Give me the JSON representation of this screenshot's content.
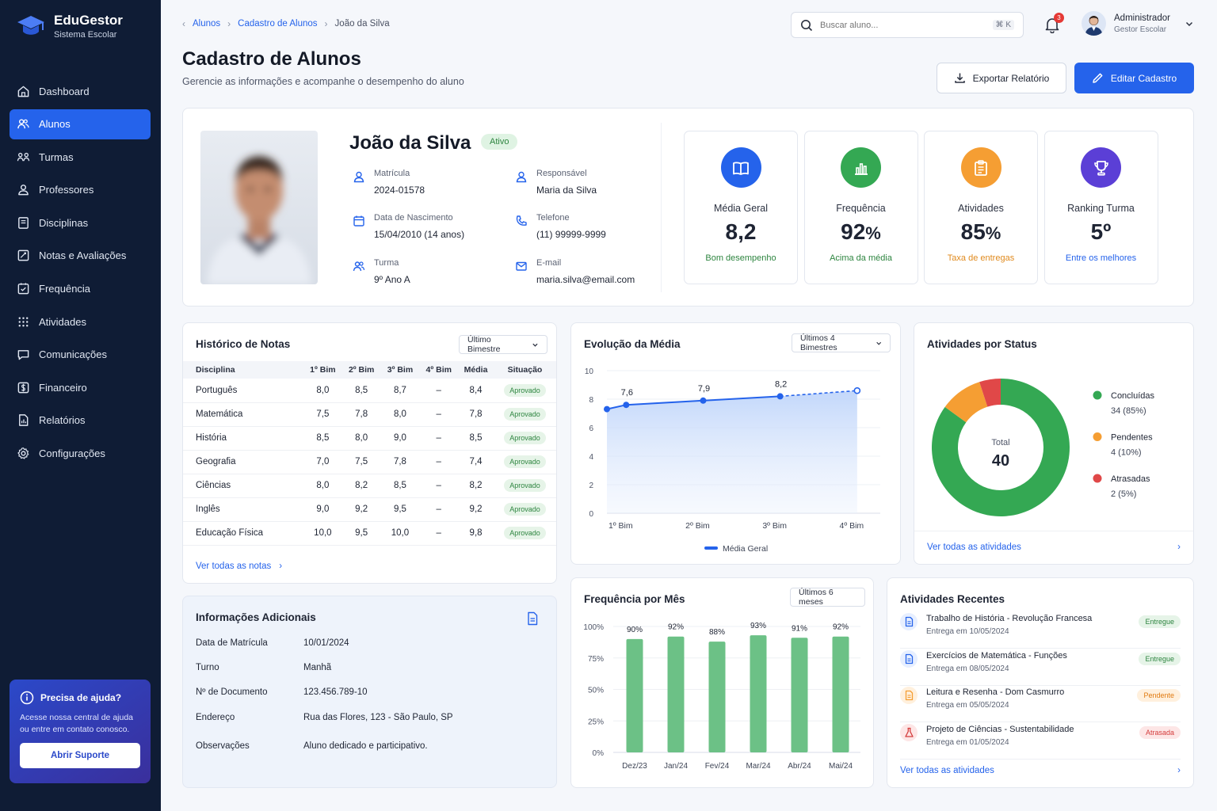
{
  "app": {
    "name": "EduGestor",
    "subtitle": "Sistema Escolar"
  },
  "sidebar": {
    "items": [
      {
        "label": "Dashboard",
        "icon": "home-icon"
      },
      {
        "label": "Alunos",
        "icon": "students-icon",
        "active": true
      },
      {
        "label": "Turmas",
        "icon": "classes-icon"
      },
      {
        "label": "Professores",
        "icon": "user-icon"
      },
      {
        "label": "Disciplinas",
        "icon": "book-icon"
      },
      {
        "label": "Notas e Avaliações",
        "icon": "grades-icon"
      },
      {
        "label": "Frequência",
        "icon": "attendance-icon"
      },
      {
        "label": "Atividades",
        "icon": "activities-icon"
      },
      {
        "label": "Comunicações",
        "icon": "chat-icon"
      },
      {
        "label": "Financeiro",
        "icon": "finance-icon"
      },
      {
        "label": "Relatórios",
        "icon": "reports-icon"
      },
      {
        "label": "Configurações",
        "icon": "gear-icon"
      }
    ],
    "help": {
      "title": "Precisa de ajuda?",
      "text": "Acesse nossa central de ajuda ou entre em contato conosco.",
      "button": "Abrir Suporte"
    }
  },
  "breadcrumb": {
    "items": [
      "Alunos",
      "Cadastro de Alunos"
    ],
    "current": "João da Silva"
  },
  "header": {
    "title": "Cadastro de Alunos",
    "subtitle": "Gerencie as informações e acompanhe o desempenho do aluno",
    "search_placeholder": "Buscar aluno...",
    "search_shortcut": "⌘ K",
    "notifications": "3",
    "user_name": "Administrador",
    "user_role": "Gestor Escolar",
    "export_label": "Exportar Relatório",
    "edit_label": "Editar Cadastro"
  },
  "student": {
    "name": "João da Silva",
    "status": "Ativo",
    "fields": {
      "matricula": {
        "label": "Matrícula",
        "value": "2024-01578"
      },
      "responsavel": {
        "label": "Responsável",
        "value": "Maria da Silva"
      },
      "nascimento": {
        "label": "Data de Nascimento",
        "value": "15/04/2010 (14 anos)"
      },
      "telefone": {
        "label": "Telefone",
        "value": "(11) 99999-9999"
      },
      "turma": {
        "label": "Turma",
        "value": "9º Ano A"
      },
      "email": {
        "label": "E-mail",
        "value": "maria.silva@email.com"
      }
    }
  },
  "stats": [
    {
      "label": "Média Geral",
      "value": "8,2",
      "unit": "",
      "note": "Bom desempenho",
      "color": "#2563eb",
      "note_color": "#2e8540",
      "icon": "book-open-icon"
    },
    {
      "label": "Frequência",
      "value": "92",
      "unit": "%",
      "note": "Acima da média",
      "color": "#34a853",
      "note_color": "#2e8540",
      "icon": "bar-chart-icon"
    },
    {
      "label": "Atividades",
      "value": "85",
      "unit": "%",
      "note": "Taxa de entregas",
      "color": "#f59e33",
      "note_color": "#e08a1e",
      "icon": "clipboard-icon"
    },
    {
      "label": "Ranking Turma",
      "value": "5º",
      "unit": "",
      "note": "Entre os melhores",
      "color": "#5b3fd6",
      "note_color": "#2563eb",
      "icon": "trophy-icon"
    }
  ],
  "grades": {
    "title": "Histórico de Notas",
    "filter": "Último Bimestre",
    "columns": [
      "Disciplina",
      "1º Bim",
      "2º Bim",
      "3º Bim",
      "4º Bim",
      "Média",
      "Situação"
    ],
    "rows": [
      [
        "Português",
        "8,0",
        "8,5",
        "8,7",
        "–",
        "8,4",
        "Aprovado"
      ],
      [
        "Matemática",
        "7,5",
        "7,8",
        "8,0",
        "–",
        "7,8",
        "Aprovado"
      ],
      [
        "História",
        "8,5",
        "8,0",
        "9,0",
        "–",
        "8,5",
        "Aprovado"
      ],
      [
        "Geografia",
        "7,0",
        "7,5",
        "7,8",
        "–",
        "7,4",
        "Aprovado"
      ],
      [
        "Ciências",
        "8,0",
        "8,2",
        "8,5",
        "–",
        "8,2",
        "Aprovado"
      ],
      [
        "Inglês",
        "9,0",
        "9,2",
        "9,5",
        "–",
        "9,2",
        "Aprovado"
      ],
      [
        "Educação Física",
        "10,0",
        "9,5",
        "10,0",
        "–",
        "9,8",
        "Aprovado"
      ]
    ],
    "link": "Ver todas as notas"
  },
  "extra": {
    "title": "Informações Adicionais",
    "rows": [
      {
        "k": "Data de Matrícula",
        "v": "10/01/2024"
      },
      {
        "k": "Turno",
        "v": "Manhã"
      },
      {
        "k": "Nº de Documento",
        "v": "123.456.789-10"
      },
      {
        "k": "Endereço",
        "v": "Rua das Flores, 123 - São Paulo, SP"
      },
      {
        "k": "Observações",
        "v": "Aluno dedicado e participativo."
      }
    ]
  },
  "evolution": {
    "title": "Evolução da Média",
    "filter": "Últimos 4 Bimestres",
    "chart_data": {
      "type": "line",
      "categories": [
        "1º Bim",
        "2º Bim",
        "3º Bim",
        "4º Bim"
      ],
      "series": [
        {
          "name": "Média Geral",
          "x": [
            0.75,
            1,
            2,
            3,
            4
          ],
          "values": [
            7.3,
            7.6,
            7.9,
            8.2,
            8.6
          ],
          "labels": [
            "",
            "7,6",
            "7,9",
            "8,2",
            ""
          ]
        }
      ],
      "ylim": [
        0,
        10
      ],
      "yticks": [
        0,
        2,
        4,
        6,
        8,
        10
      ],
      "projected_from_index": 3,
      "color": "#2563eb"
    }
  },
  "status": {
    "title": "Atividades por Status",
    "total_label": "Total",
    "total": "40",
    "chart_data": {
      "type": "pie",
      "labels": [
        "Concluídas",
        "Pendentes",
        "Atrasadas"
      ],
      "values": [
        34,
        4,
        2
      ],
      "display": [
        "34 (85%)",
        "4 (10%)",
        "2 (5%)"
      ],
      "colors": [
        "#34a853",
        "#f59e33",
        "#e04848"
      ]
    },
    "link": "Ver todas as atividades"
  },
  "attendance": {
    "title": "Frequência por Mês",
    "filter": "Últimos 6 meses",
    "chart_data": {
      "type": "bar",
      "categories": [
        "Dez/23",
        "Jan/24",
        "Fev/24",
        "Mar/24",
        "Abr/24",
        "Mai/24"
      ],
      "values": [
        90,
        92,
        88,
        93,
        91,
        92
      ],
      "labels": [
        "90%",
        "92%",
        "88%",
        "93%",
        "91%",
        "92%"
      ],
      "ylim": [
        0,
        100
      ],
      "yticks": [
        "0%",
        "25%",
        "50%",
        "75%",
        "100%"
      ],
      "color": "#6cc186"
    }
  },
  "recent": {
    "title": "Atividades Recentes",
    "items": [
      {
        "title": "Trabalho de História - Revolução Francesa",
        "date": "Entrega em 10/05/2024",
        "status": "Entregue",
        "kind": "ok"
      },
      {
        "title": "Exercícios de Matemática - Funções",
        "date": "Entrega em 08/05/2024",
        "status": "Entregue",
        "kind": "ok"
      },
      {
        "title": "Leitura e Resenha - Dom Casmurro",
        "date": "Entrega em 05/05/2024",
        "status": "Pendente",
        "kind": "pending"
      },
      {
        "title": "Projeto de Ciências - Sustentabilidade",
        "date": "Entrega em 01/05/2024",
        "status": "Atrasada",
        "kind": "late"
      }
    ],
    "link": "Ver todas as atividades"
  }
}
